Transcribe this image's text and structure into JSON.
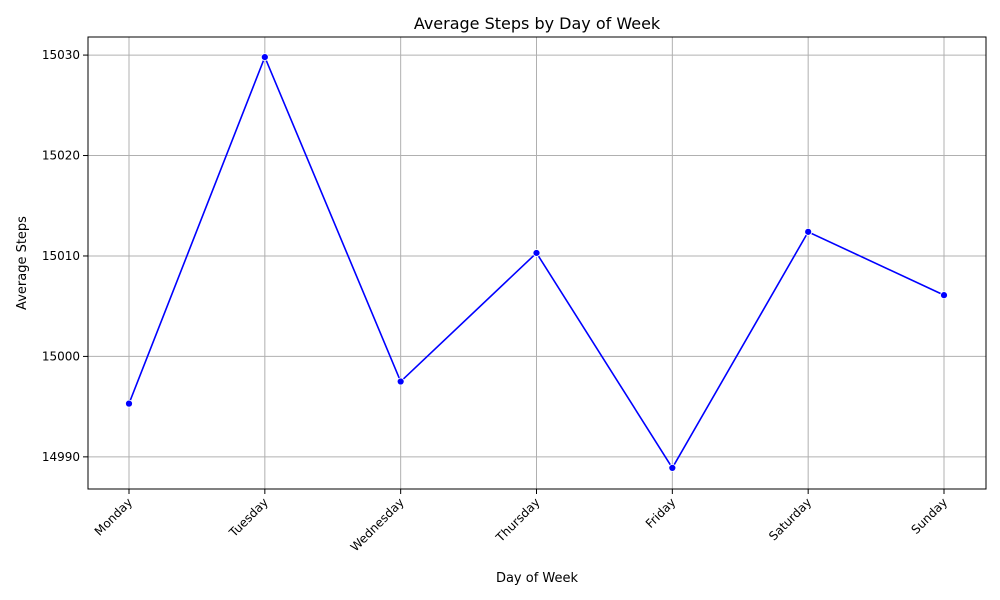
{
  "chart_data": {
    "type": "line",
    "title": "Average Steps by Day of Week",
    "xlabel": "Day of Week",
    "ylabel": "Average Steps",
    "categories": [
      "Monday",
      "Tuesday",
      "Wednesday",
      "Thursday",
      "Friday",
      "Saturday",
      "Sunday"
    ],
    "series": [
      {
        "values": [
          14995.3,
          15029.8,
          14997.5,
          15010.3,
          14988.9,
          15012.4,
          15006.1
        ]
      }
    ],
    "ylim": [
      14986.8,
      15031.8
    ],
    "yticks": [
      14990,
      15000,
      15010,
      15020,
      15030
    ],
    "grid": true,
    "line_color": "#0000ff",
    "marker_color": "#0000ff",
    "x_tick_rotation": 45
  }
}
